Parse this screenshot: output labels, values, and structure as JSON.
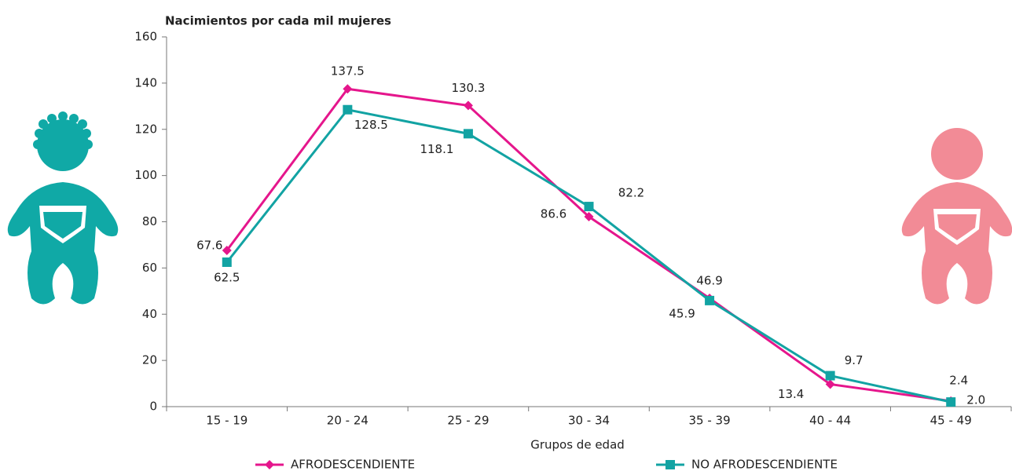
{
  "chart_data": {
    "type": "line",
    "title": "Nacimientos por cada mil mujeres",
    "x_label": "Grupos de edad",
    "categories": [
      "15 - 19",
      "20 - 24",
      "25 - 29",
      "30 - 34",
      "35 - 39",
      "40 - 44",
      "45 - 49"
    ],
    "series": [
      {
        "name": "AFRODESCENDIENTE",
        "color": "#e5168c",
        "marker": "diamond",
        "values": [
          67.6,
          137.5,
          130.3,
          82.2,
          46.9,
          9.7,
          2.4
        ],
        "value_labels": [
          "67.6",
          "137.5",
          "130.3",
          "82.2",
          "46.9",
          "9.7",
          "2.4"
        ]
      },
      {
        "name": "NO AFRODESCENDIENTE",
        "color": "#12a3a3",
        "marker": "square",
        "values": [
          62.5,
          128.5,
          118.1,
          86.6,
          45.9,
          13.4,
          2.0
        ],
        "value_labels": [
          "62.5",
          "128.5",
          "118.1",
          "86.6",
          "45.9",
          "13.4",
          "2.0"
        ]
      }
    ],
    "ylim": [
      0,
      160
    ],
    "yticks": [
      0,
      20,
      40,
      60,
      80,
      100,
      120,
      140,
      160
    ],
    "grid": false,
    "legend": "bottom"
  }
}
